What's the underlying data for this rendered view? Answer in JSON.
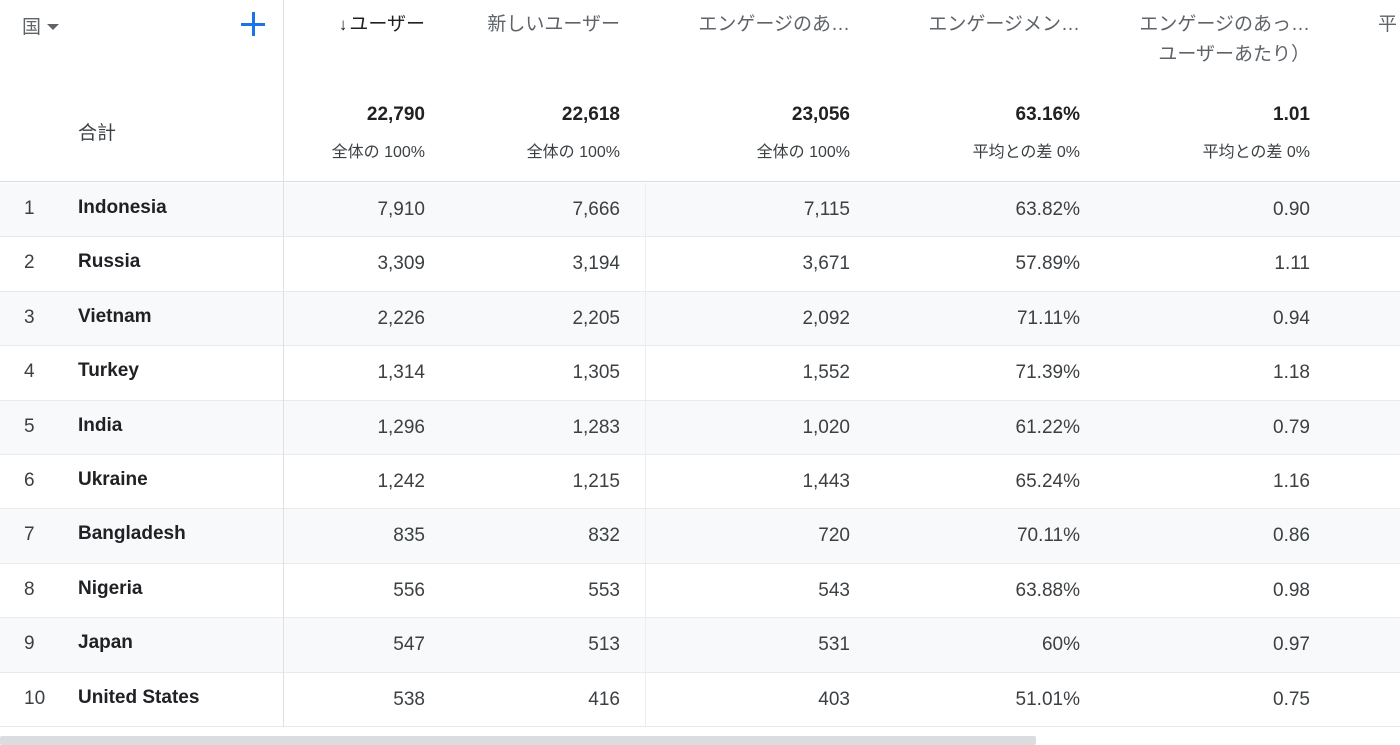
{
  "header": {
    "dimension_label": "国",
    "columns": [
      {
        "arrow": "↓",
        "label": "ユーザー"
      },
      {
        "label": "新しいユーザー"
      },
      {
        "label": "エンゲージのあ…"
      },
      {
        "label": "エンゲージメン…"
      },
      {
        "label": "エンゲージのあっ…",
        "label2": "ユーザーあたり）"
      },
      {
        "label": "平"
      }
    ]
  },
  "totals": {
    "label": "合計",
    "values": [
      {
        "value": "22,790",
        "sub": "全体の 100%"
      },
      {
        "value": "22,618",
        "sub": "全体の 100%"
      },
      {
        "value": "23,056",
        "sub": "全体の 100%"
      },
      {
        "value": "63.16%",
        "sub": "平均との差 0%"
      },
      {
        "value": "1.01",
        "sub": "平均との差 0%"
      }
    ]
  },
  "rows": [
    {
      "idx": "1",
      "name": "Indonesia",
      "c1": "7,910",
      "c2": "7,666",
      "c3": "7,115",
      "c4": "63.82%",
      "c5": "0.90"
    },
    {
      "idx": "2",
      "name": "Russia",
      "c1": "3,309",
      "c2": "3,194",
      "c3": "3,671",
      "c4": "57.89%",
      "c5": "1.11"
    },
    {
      "idx": "3",
      "name": "Vietnam",
      "c1": "2,226",
      "c2": "2,205",
      "c3": "2,092",
      "c4": "71.11%",
      "c5": "0.94"
    },
    {
      "idx": "4",
      "name": "Turkey",
      "c1": "1,314",
      "c2": "1,305",
      "c3": "1,552",
      "c4": "71.39%",
      "c5": "1.18"
    },
    {
      "idx": "5",
      "name": "India",
      "c1": "1,296",
      "c2": "1,283",
      "c3": "1,020",
      "c4": "61.22%",
      "c5": "0.79"
    },
    {
      "idx": "6",
      "name": "Ukraine",
      "c1": "1,242",
      "c2": "1,215",
      "c3": "1,443",
      "c4": "65.24%",
      "c5": "1.16"
    },
    {
      "idx": "7",
      "name": "Bangladesh",
      "c1": "835",
      "c2": "832",
      "c3": "720",
      "c4": "70.11%",
      "c5": "0.86"
    },
    {
      "idx": "8",
      "name": "Nigeria",
      "c1": "556",
      "c2": "553",
      "c3": "543",
      "c4": "63.88%",
      "c5": "0.98"
    },
    {
      "idx": "9",
      "name": "Japan",
      "c1": "547",
      "c2": "513",
      "c3": "531",
      "c4": "60%",
      "c5": "0.97"
    },
    {
      "idx": "10",
      "name": "United States",
      "c1": "538",
      "c2": "416",
      "c3": "403",
      "c4": "51.01%",
      "c5": "0.75"
    }
  ],
  "icons": {
    "add": "plus-icon",
    "sort": "arrow-down-icon",
    "dropdown": "caret-down-icon"
  },
  "colors": {
    "accent": "#1a73e8"
  }
}
